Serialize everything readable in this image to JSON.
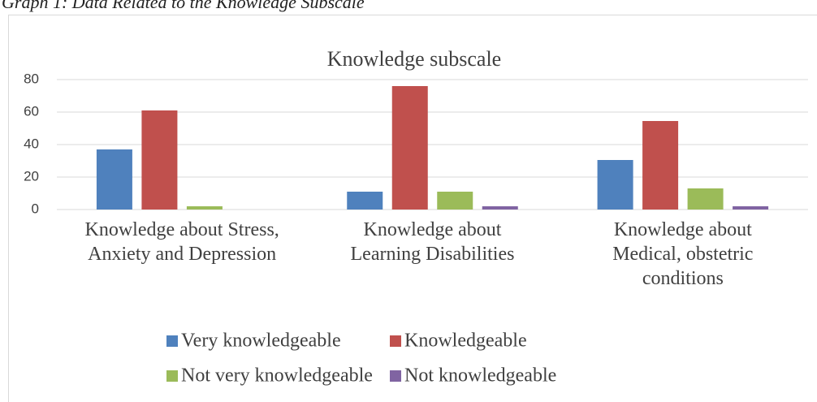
{
  "caption": "Graph 1: Data Related to the Knowledge Subscale",
  "chart_data": {
    "type": "bar",
    "title": "Knowledge subscale",
    "categories": [
      "Knowledge about Stress, Anxiety and Depression",
      "Knowledge about Learning Disabilities",
      "Knowledge about Medical, obstetric conditions"
    ],
    "series": [
      {
        "name": "Very knowledgeable",
        "color": "#4f81bd",
        "values": [
          37,
          11,
          30.5
        ]
      },
      {
        "name": "Knowledgeable",
        "color": "#c0504d",
        "values": [
          61,
          76,
          54.5
        ]
      },
      {
        "name": "Not very knowledgeable",
        "color": "#9bbb59",
        "values": [
          2,
          11,
          13
        ]
      },
      {
        "name": "Not knowledgeable",
        "color": "#8064a2",
        "values": [
          0,
          2,
          2
        ]
      }
    ],
    "ylim": [
      0,
      80
    ],
    "yticks": [
      0,
      20,
      40,
      60,
      80
    ],
    "grid": true,
    "legend": "bottom"
  }
}
